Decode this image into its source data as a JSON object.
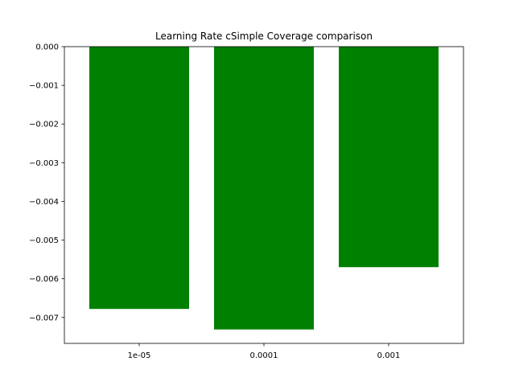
{
  "chart_data": {
    "type": "bar",
    "title": "Learning Rate cSimple Coverage comparison",
    "xlabel": "",
    "ylabel": "",
    "categories": [
      "1e-05",
      "0.0001",
      "0.001"
    ],
    "values": [
      -0.00678,
      -0.00731,
      -0.0057
    ],
    "ylim": [
      -0.00767,
      0.0
    ],
    "yticks": [
      0.0,
      -0.001,
      -0.002,
      -0.003,
      -0.004,
      -0.005,
      -0.006,
      -0.007
    ],
    "ytick_labels": [
      "0.000",
      "−0.001",
      "−0.002",
      "−0.003",
      "−0.004",
      "−0.005",
      "−0.006",
      "−0.007"
    ],
    "bar_color": "#008000",
    "grid": false,
    "legend": "none"
  }
}
